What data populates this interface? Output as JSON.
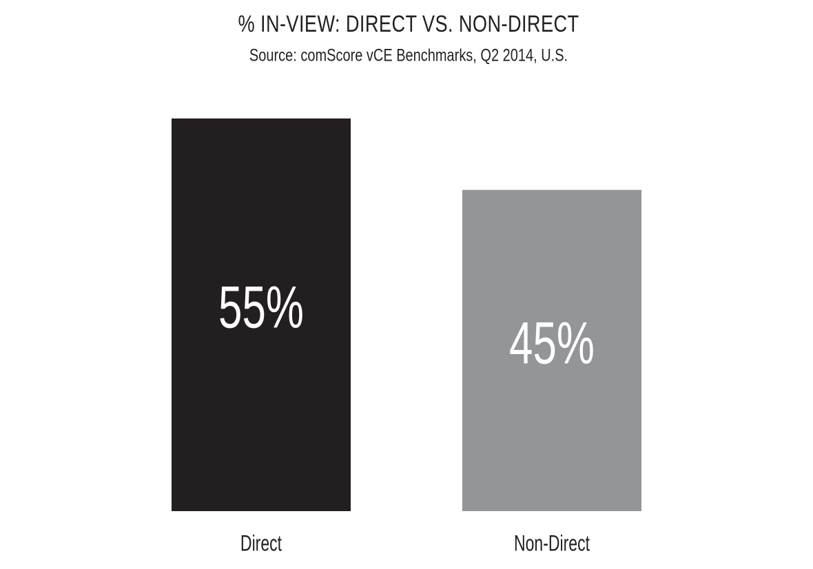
{
  "chart_data": {
    "type": "bar",
    "title": "% IN-VIEW: DIRECT VS. NON-DIRECT",
    "subtitle": "Source: comScore vCE Benchmarks, Q2 2014, U.S.",
    "categories": [
      "Direct",
      "Non-Direct"
    ],
    "values": [
      55,
      45
    ],
    "value_labels": [
      "55%",
      "45%"
    ],
    "colors": [
      "#231f20",
      "#939598"
    ]
  }
}
